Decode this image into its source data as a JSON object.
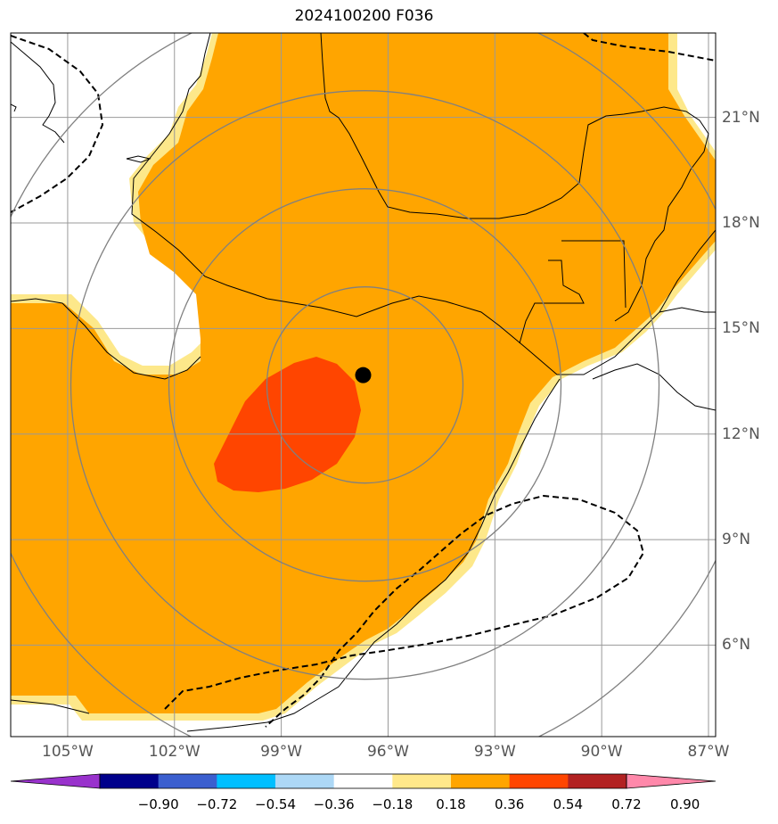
{
  "title": "2024100200 F036",
  "map": {
    "lon_range": [
      -106.6,
      -86.8
    ],
    "lat_range": [
      3.4,
      23.4
    ],
    "lon_ticks": [
      {
        "lon": -105,
        "label": "105°W"
      },
      {
        "lon": -102,
        "label": "102°W"
      },
      {
        "lon": -99,
        "label": "99°W"
      },
      {
        "lon": -96,
        "label": "96°W"
      },
      {
        "lon": -93,
        "label": "93°W"
      },
      {
        "lon": -90,
        "label": "90°W"
      },
      {
        "lon": -87,
        "label": "87°W"
      }
    ],
    "lat_ticks": [
      {
        "lat": 21,
        "label": "21°N"
      },
      {
        "lat": 18,
        "label": "18°N"
      },
      {
        "lat": 15,
        "label": "15°N"
      },
      {
        "lat": 12,
        "label": "12°N"
      },
      {
        "lat": 9,
        "label": "9°N"
      },
      {
        "lat": 6,
        "label": "6°N"
      }
    ],
    "storm_center": {
      "lon": -96.7,
      "lat": 13.7
    },
    "range_rings": 4,
    "colors": {
      "orange": "#ffa500",
      "light_yellow": "#fde88a",
      "red_orange": "#ff4500",
      "grid": "#999999",
      "rings": "#808080"
    }
  },
  "colorbar": {
    "colors": [
      "#9932cc",
      "#00008b",
      "#3b5fcf",
      "#00bfff",
      "#add8f6",
      "#ffffff",
      "#ffe88a",
      "#ffa500",
      "#ff4500",
      "#b22222",
      "#ff88aa"
    ],
    "labels": [
      "−0.90",
      "−0.72",
      "−0.54",
      "−0.36",
      "−0.18",
      "0.18",
      "0.36",
      "0.54",
      "0.72",
      "0.90"
    ]
  }
}
